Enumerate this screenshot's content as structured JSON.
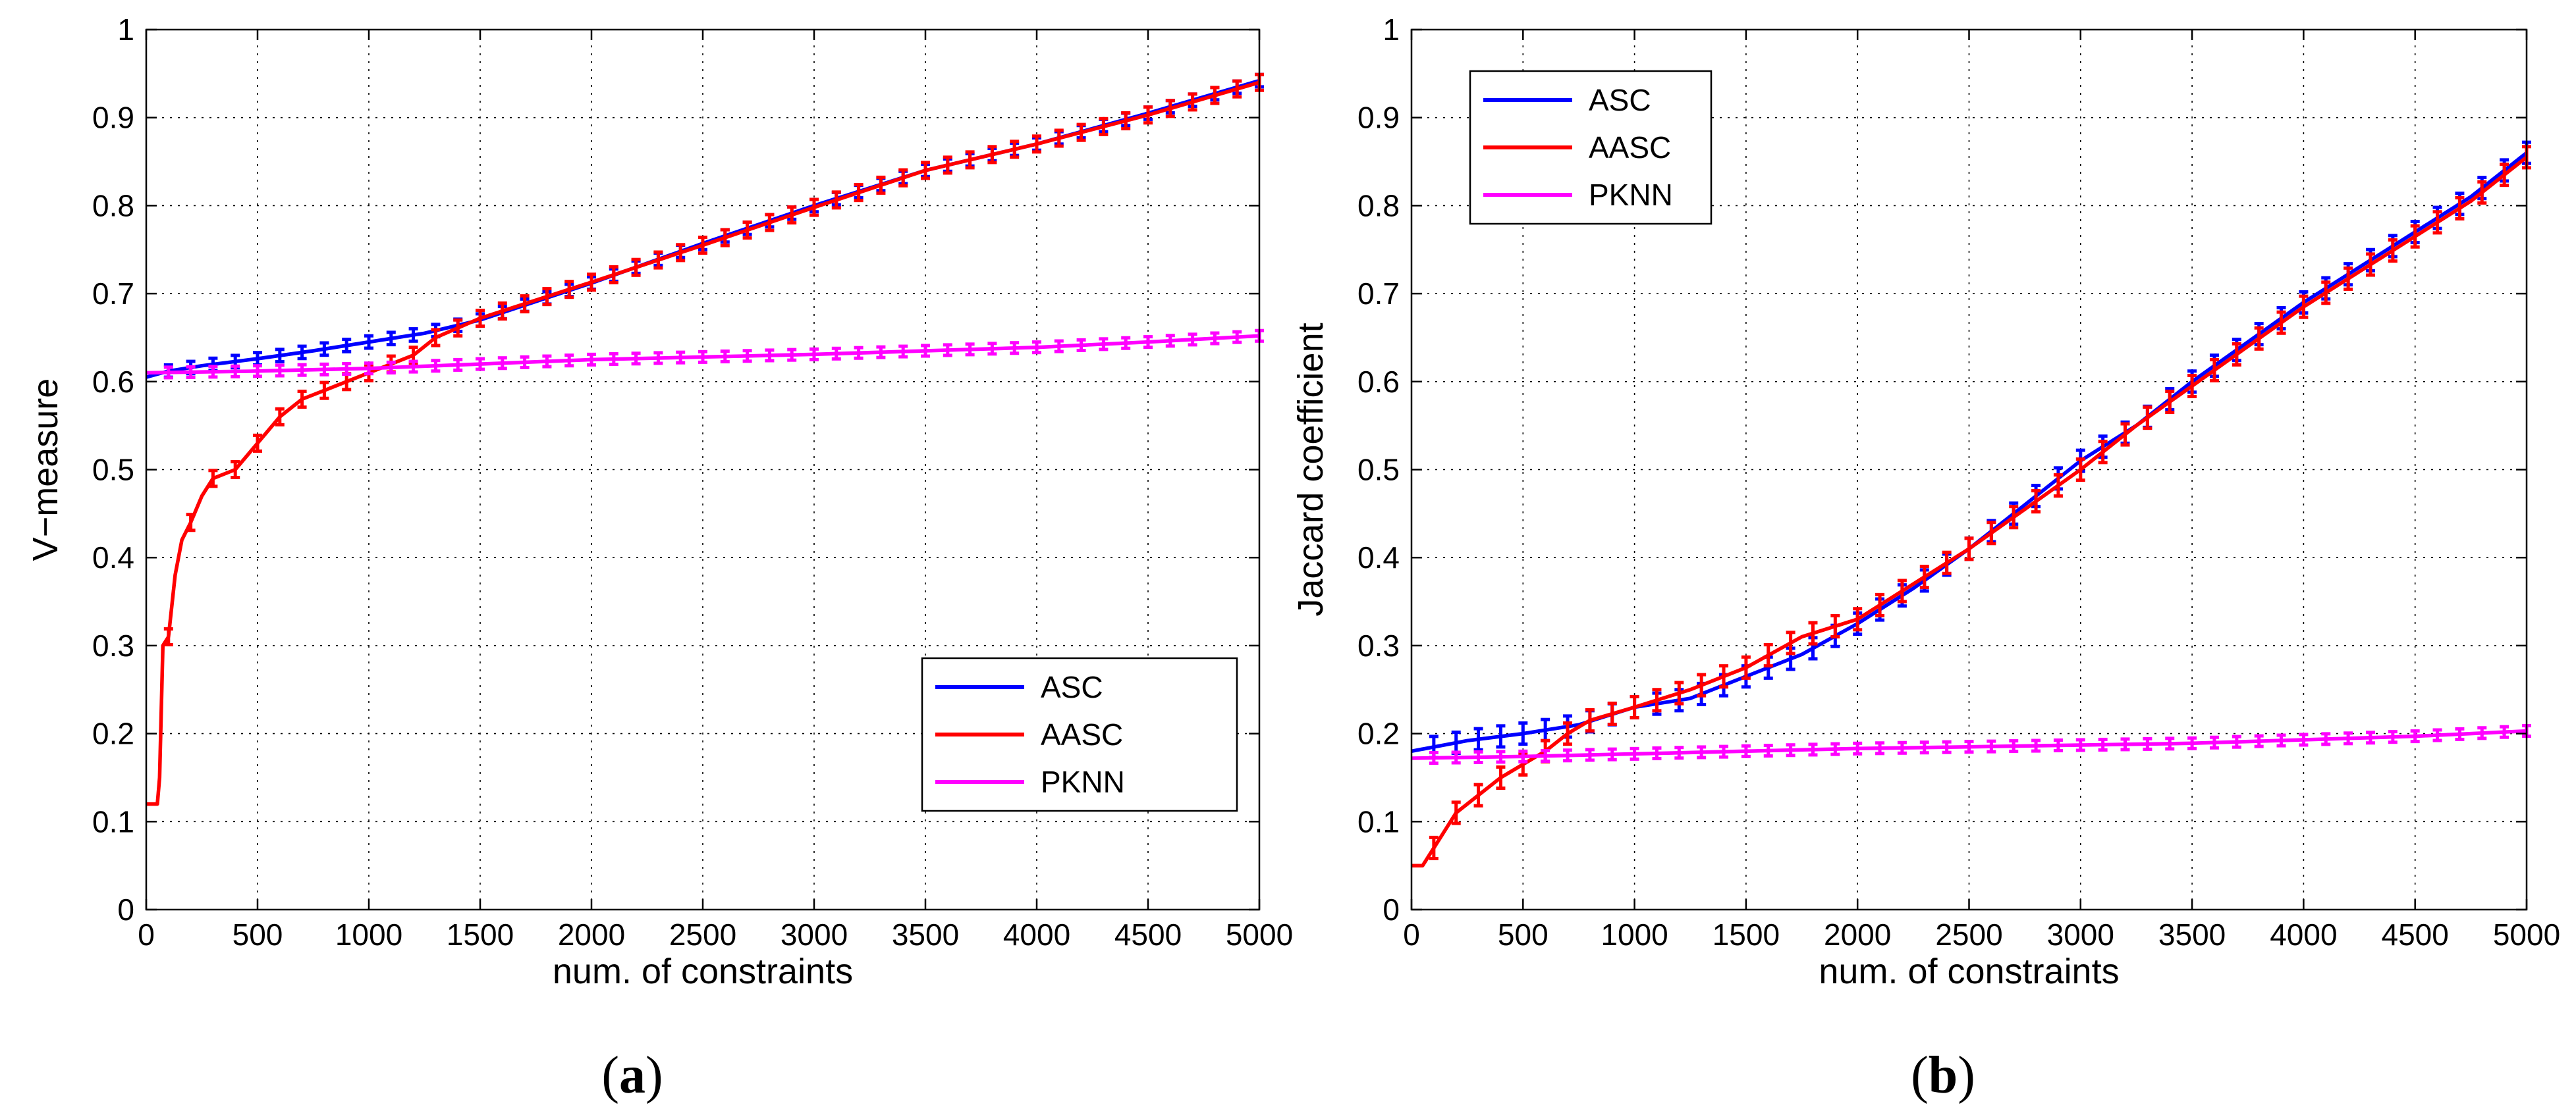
{
  "chart_data": [
    {
      "type": "line",
      "panel_label": "a",
      "title": "",
      "xlabel": "num. of constraints",
      "ylabel": "V−measure",
      "xlim": [
        0,
        5000
      ],
      "ylim": [
        0,
        1
      ],
      "xticks": [
        0,
        500,
        1000,
        1500,
        2000,
        2500,
        3000,
        3500,
        4000,
        4500,
        5000
      ],
      "yticks": [
        0,
        0.1,
        0.2,
        0.3,
        0.4,
        0.5,
        0.6,
        0.7,
        0.8,
        0.9,
        1
      ],
      "grid": true,
      "legend_position": "bottom-right",
      "series": [
        {
          "name": "ASC",
          "color": "#0000ff",
          "x": [
            0,
            100,
            250,
            500,
            750,
            1000,
            1250,
            1500,
            2000,
            2500,
            3000,
            3500,
            4000,
            4500,
            5000
          ],
          "y": [
            0.605,
            0.612,
            0.618,
            0.626,
            0.635,
            0.645,
            0.655,
            0.67,
            0.712,
            0.757,
            0.8,
            0.84,
            0.87,
            0.905,
            0.942
          ],
          "error_every": 100,
          "error": 0.007
        },
        {
          "name": "AASC",
          "color": "#ff0000",
          "x": [
            0,
            50,
            60,
            75,
            100,
            130,
            160,
            200,
            250,
            300,
            400,
            500,
            600,
            700,
            800,
            900,
            1000,
            1100,
            1200,
            1300,
            1500,
            2000,
            2500,
            3000,
            3500,
            4000,
            4500,
            5000
          ],
          "y": [
            0.12,
            0.12,
            0.15,
            0.3,
            0.31,
            0.38,
            0.42,
            0.44,
            0.47,
            0.49,
            0.5,
            0.53,
            0.56,
            0.58,
            0.59,
            0.6,
            0.61,
            0.62,
            0.63,
            0.65,
            0.672,
            0.713,
            0.755,
            0.798,
            0.84,
            0.87,
            0.903,
            0.94
          ],
          "error_every": 100,
          "error": 0.009
        },
        {
          "name": "PKNN",
          "color": "#ff00ff",
          "x": [
            0,
            500,
            1000,
            1500,
            2000,
            2500,
            3000,
            3500,
            4000,
            4500,
            5000
          ],
          "y": [
            0.61,
            0.612,
            0.615,
            0.62,
            0.625,
            0.628,
            0.631,
            0.635,
            0.639,
            0.645,
            0.652
          ],
          "error_every": 100,
          "error": 0.006
        }
      ]
    },
    {
      "type": "line",
      "panel_label": "b",
      "title": "",
      "xlabel": "num. of constraints",
      "ylabel": "Jaccard coefficient",
      "xlim": [
        0,
        5000
      ],
      "ylim": [
        0,
        1
      ],
      "xticks": [
        0,
        500,
        1000,
        1500,
        2000,
        2500,
        3000,
        3500,
        4000,
        4500,
        5000
      ],
      "yticks": [
        0,
        0.1,
        0.2,
        0.3,
        0.4,
        0.5,
        0.6,
        0.7,
        0.8,
        0.9,
        1
      ],
      "grid": true,
      "legend_position": "top-left",
      "series": [
        {
          "name": "ASC",
          "color": "#0000ff",
          "x": [
            0,
            250,
            500,
            750,
            1000,
            1250,
            1500,
            1750,
            2000,
            2250,
            2500,
            2750,
            3000,
            3250,
            3500,
            3750,
            4000,
            4250,
            4500,
            4750,
            5000
          ],
          "y": [
            0.18,
            0.192,
            0.2,
            0.21,
            0.23,
            0.24,
            0.265,
            0.29,
            0.325,
            0.365,
            0.41,
            0.46,
            0.51,
            0.55,
            0.6,
            0.645,
            0.69,
            0.73,
            0.77,
            0.81,
            0.86
          ],
          "error_every": 100,
          "error": 0.012
        },
        {
          "name": "AASC",
          "color": "#ff0000",
          "x": [
            0,
            50,
            100,
            150,
            200,
            250,
            300,
            400,
            500,
            600,
            700,
            800,
            1000,
            1250,
            1500,
            1750,
            2000,
            2250,
            2500,
            2750,
            3000,
            3250,
            3500,
            3750,
            4000,
            4250,
            4500,
            4750,
            5000
          ],
          "y": [
            0.05,
            0.05,
            0.07,
            0.09,
            0.11,
            0.12,
            0.13,
            0.15,
            0.165,
            0.18,
            0.2,
            0.215,
            0.23,
            0.25,
            0.275,
            0.31,
            0.33,
            0.37,
            0.41,
            0.455,
            0.5,
            0.55,
            0.595,
            0.64,
            0.685,
            0.725,
            0.765,
            0.805,
            0.855
          ],
          "error_every": 100,
          "error": 0.012
        },
        {
          "name": "PKNN",
          "color": "#ff00ff",
          "x": [
            0,
            500,
            1000,
            1500,
            2000,
            2500,
            3000,
            3500,
            4000,
            4500,
            5000
          ],
          "y": [
            0.172,
            0.174,
            0.177,
            0.18,
            0.183,
            0.185,
            0.187,
            0.189,
            0.193,
            0.197,
            0.203
          ],
          "error_every": 100,
          "error": 0.006
        }
      ]
    }
  ]
}
